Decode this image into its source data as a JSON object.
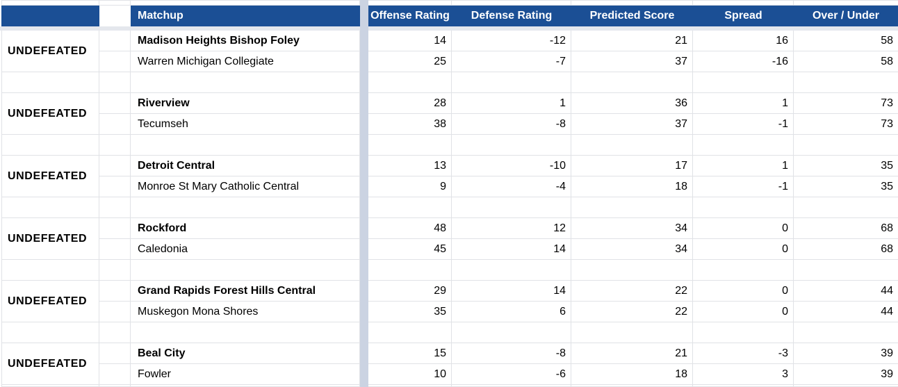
{
  "sheet": {
    "columns": {
      "matchup": "Matchup",
      "offense": "Offense Rating",
      "defense": "Defense Rating",
      "predicted": "Predicted Score",
      "spread": "Spread",
      "over_under": "Over / Under"
    },
    "matchups": [
      {
        "tag": "UNDEFEATED",
        "teams": [
          {
            "name": "Madison Heights Bishop Foley",
            "offense": "14",
            "defense": "-12",
            "predicted": "21",
            "spread": "16",
            "over_under": "58"
          },
          {
            "name": "Warren Michigan Collegiate",
            "offense": "25",
            "defense": "-7",
            "predicted": "37",
            "spread": "-16",
            "over_under": "58"
          }
        ]
      },
      {
        "tag": "UNDEFEATED",
        "teams": [
          {
            "name": "Riverview",
            "offense": "28",
            "defense": "1",
            "predicted": "36",
            "spread": "1",
            "over_under": "73"
          },
          {
            "name": "Tecumseh",
            "offense": "38",
            "defense": "-8",
            "predicted": "37",
            "spread": "-1",
            "over_under": "73"
          }
        ]
      },
      {
        "tag": "UNDEFEATED",
        "teams": [
          {
            "name": "Detroit Central",
            "offense": "13",
            "defense": "-10",
            "predicted": "17",
            "spread": "1",
            "over_under": "35"
          },
          {
            "name": "Monroe St Mary Catholic Central",
            "offense": "9",
            "defense": "-4",
            "predicted": "18",
            "spread": "-1",
            "over_under": "35"
          }
        ]
      },
      {
        "tag": "UNDEFEATED",
        "teams": [
          {
            "name": "Rockford",
            "offense": "48",
            "defense": "12",
            "predicted": "34",
            "spread": "0",
            "over_under": "68"
          },
          {
            "name": "Caledonia",
            "offense": "45",
            "defense": "14",
            "predicted": "34",
            "spread": "0",
            "over_under": "68"
          }
        ]
      },
      {
        "tag": "UNDEFEATED",
        "teams": [
          {
            "name": "Grand Rapids Forest Hills Central",
            "offense": "29",
            "defense": "14",
            "predicted": "22",
            "spread": "0",
            "over_under": "44"
          },
          {
            "name": "Muskegon Mona Shores",
            "offense": "35",
            "defense": "6",
            "predicted": "22",
            "spread": "0",
            "over_under": "44"
          }
        ]
      },
      {
        "tag": "UNDEFEATED",
        "teams": [
          {
            "name": "Beal City",
            "offense": "15",
            "defense": "-8",
            "predicted": "21",
            "spread": "-3",
            "over_under": "39"
          },
          {
            "name": "Fowler",
            "offense": "10",
            "defense": "-6",
            "predicted": "18",
            "spread": "3",
            "over_under": "39"
          }
        ]
      }
    ],
    "colors": {
      "header_bg": "#1b4f95",
      "header_text": "#ffffff",
      "gridline": "#e0e2e6",
      "frozen_column_divider": "#cbd3e2",
      "frozen_row_divider": "#e4e7ed",
      "cell_text": "#000000"
    }
  }
}
